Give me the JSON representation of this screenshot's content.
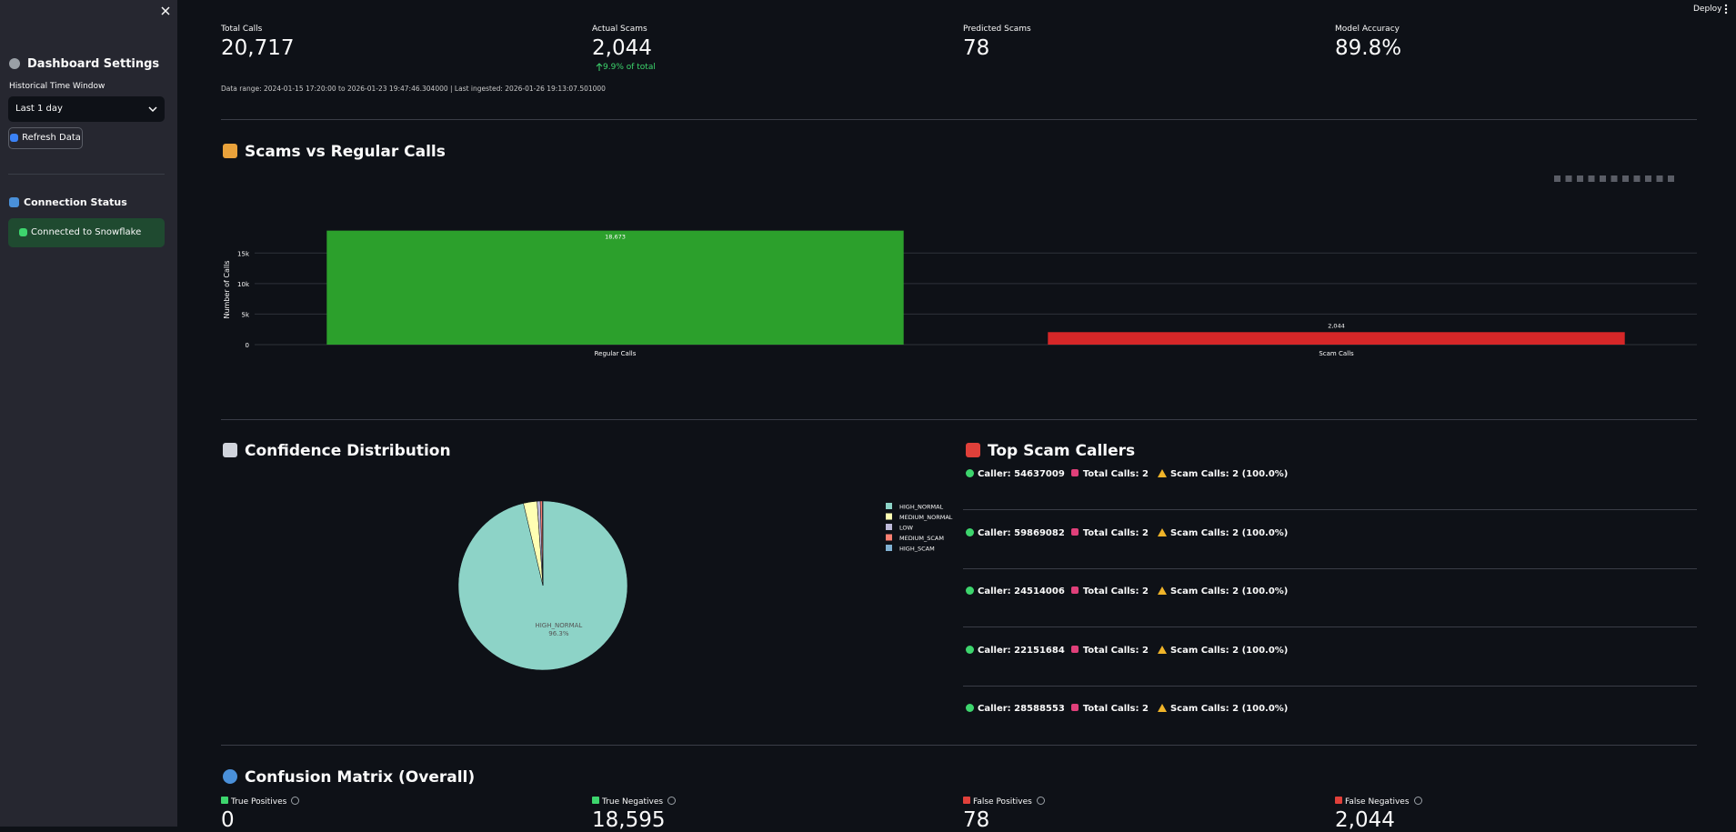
{
  "header": {
    "deploy": "Deploy"
  },
  "sidebar": {
    "title": "Dashboard Settings",
    "time_window_label": "Historical Time Window",
    "time_window_value": "Last 1 day",
    "refresh_button": "Refresh Data",
    "connection_title": "Connection Status",
    "connection_status": "Connected to Snowflake"
  },
  "metrics": [
    {
      "label": "Total Calls",
      "value": "20,717"
    },
    {
      "label": "Actual Scams",
      "value": "2,044",
      "delta": "9.9% of total"
    },
    {
      "label": "Predicted Scams",
      "value": "78"
    },
    {
      "label": "Model Accuracy",
      "value": "89.8%"
    }
  ],
  "data_range": "Data range: 2024-01-15 17:20:00 to 2026-01-23 19:47:46.304000 | Last ingested: 2026-01-26 19:13:07.501000",
  "bar_section": {
    "title": "Scams vs Regular Calls",
    "chart": {
      "type": "bar",
      "y_label": "Number of Calls",
      "categories": [
        "Regular Calls",
        "Scam Calls"
      ],
      "values": [
        18673,
        2044
      ],
      "value_labels": [
        "18,673",
        "2,044"
      ],
      "colors": [
        "#2ca02c",
        "#d62728"
      ],
      "ylim": [
        0,
        21000
      ],
      "yticks": [
        0,
        {
          "value": 5000,
          "label": "5k"
        },
        {
          "value": 10000,
          "label": "10k"
        },
        {
          "value": 15000,
          "label": "15k"
        }
      ],
      "grid": true
    }
  },
  "pie_section": {
    "title": "Confidence Distribution",
    "chart": {
      "type": "pie",
      "categories": [
        "HIGH_NORMAL",
        "MEDIUM_NORMAL",
        "LOW",
        "MEDIUM_SCAM",
        "HIGH_SCAM"
      ],
      "values": [
        96.3,
        2.6,
        0.6,
        0.4,
        0.1
      ],
      "value_labels": [
        "96.3%",
        null,
        null,
        null,
        null
      ],
      "colors": [
        "#8dd3c7",
        "#ffffb3",
        "#bebada",
        "#fb8072",
        "#80b1d3"
      ],
      "legend": "right"
    }
  },
  "callers": {
    "title": "Top Scam Callers",
    "labels": {
      "caller": "Caller:",
      "total": "Total Calls:",
      "scam": "Scam Calls:"
    },
    "rows": [
      {
        "caller": "54637009",
        "total_calls": "2",
        "scam_calls": "2 (100.0%)"
      },
      {
        "caller": "59869082",
        "total_calls": "2",
        "scam_calls": "2 (100.0%)"
      },
      {
        "caller": "24514006",
        "total_calls": "2",
        "scam_calls": "2 (100.0%)"
      },
      {
        "caller": "22151684",
        "total_calls": "2",
        "scam_calls": "2 (100.0%)"
      },
      {
        "caller": "28588553",
        "total_calls": "2",
        "scam_calls": "2 (100.0%)"
      }
    ]
  },
  "confusion": {
    "title": "Confusion Matrix (Overall)",
    "metrics": [
      {
        "label": "True Positives",
        "value": "0"
      },
      {
        "label": "True Negatives",
        "value": "18,595"
      },
      {
        "label": "False Positives",
        "value": "78"
      },
      {
        "label": "False Negatives",
        "value": "2,044"
      }
    ]
  }
}
